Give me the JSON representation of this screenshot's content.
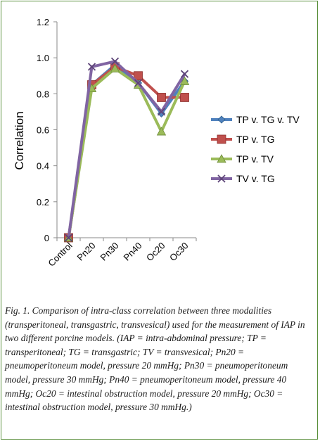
{
  "chart_data": {
    "type": "line",
    "categories": [
      "Control",
      "Pn20",
      "Pn30",
      "Pn40",
      "Oc20",
      "Oc30"
    ],
    "ylabel": "Correlation",
    "ylim": [
      0,
      1.2
    ],
    "yticks": [
      "0",
      "0.2",
      "0.4",
      "0.6",
      "0.8",
      "1.0",
      "1.2"
    ],
    "grid": false,
    "legend_position": "right",
    "series": [
      {
        "name": "TP v. TG v. TV",
        "color": "#4f81bd",
        "marker": "diamond",
        "values": [
          0,
          0.85,
          0.96,
          0.86,
          0.69,
          0.87
        ]
      },
      {
        "name": "TP v. TG",
        "color": "#c0504d",
        "marker": "square",
        "values": [
          0,
          0.85,
          0.95,
          0.9,
          0.78,
          0.78
        ]
      },
      {
        "name": "TP v. TV",
        "color": "#9bbb59",
        "marker": "triangle",
        "values": [
          0,
          0.83,
          0.94,
          0.85,
          0.59,
          0.87
        ]
      },
      {
        "name": "TV v. TG",
        "color": "#8064a2",
        "marker": "x",
        "values": [
          0,
          0.95,
          0.98,
          0.86,
          0.7,
          0.91
        ]
      }
    ]
  },
  "caption": "Fig. 1. Comparison of intra-class correlation between three modalities (transperitoneal, transgastric, transvesical) used for the measurement of IAP in two different porcine models. (IAP = intra-abdominal pressure; TP = transperitoneal; TG = transgastric; TV = transvesical; Pn20 = pneumoperitoneum model, pressure 20 mmHg; Pn30 = pneumoperitoneum model, pressure 30 mmHg; Pn40 = pneumoperitoneum model, pressure 40 mmHg; Oc20 = intestinal obstruction model, pressure 20 mmHg; Oc30 = intestinal obstruction model, pressure 30 mmHg.)"
}
